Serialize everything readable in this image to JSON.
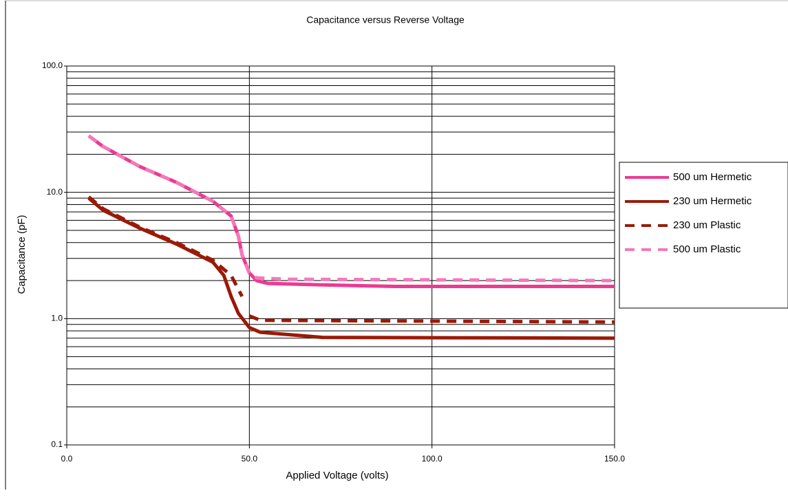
{
  "chart_data": {
    "type": "line",
    "title": "Capacitance versus Reverse Voltage",
    "xlabel": "Applied Voltage (volts)",
    "ylabel": "Capacitance (pF)",
    "xlim": [
      0,
      150
    ],
    "xticks": [
      {
        "value": 0,
        "label": "0.0"
      },
      {
        "value": 50,
        "label": "50.0"
      },
      {
        "value": 100,
        "label": "100.0"
      },
      {
        "value": 150,
        "label": "150.0"
      }
    ],
    "ylim": [
      0.1,
      100
    ],
    "yticks": [
      {
        "value": 0.1,
        "label": "0.1"
      },
      {
        "value": 1,
        "label": "1.0"
      },
      {
        "value": 10,
        "label": "10.0"
      },
      {
        "value": 100,
        "label": "100.0"
      }
    ],
    "yminor": [
      0.2,
      0.3,
      0.4,
      0.5,
      0.6,
      0.7,
      0.8,
      0.9,
      2,
      3,
      4,
      5,
      6,
      7,
      8,
      9,
      20,
      30,
      40,
      50,
      60,
      70,
      80,
      90
    ],
    "ylog": true,
    "grid": true,
    "legend": "right",
    "series": [
      {
        "name": "500 um Hermetic",
        "color": "#ec3a92",
        "style": "solid",
        "x": [
          6,
          10,
          20,
          30,
          40,
          45,
          47,
          48,
          50,
          52,
          55,
          70,
          90,
          150
        ],
        "values": [
          28,
          23,
          16,
          12,
          8.5,
          6.5,
          4.5,
          3.2,
          2.3,
          2.0,
          1.9,
          1.85,
          1.8,
          1.8
        ]
      },
      {
        "name": "230 um Hermetic",
        "color": "#9a1a08",
        "style": "solid",
        "x": [
          6,
          10,
          20,
          30,
          40,
          43,
          45,
          47,
          50,
          53,
          60,
          70,
          150
        ],
        "values": [
          9,
          7.2,
          5.2,
          3.9,
          2.8,
          2.2,
          1.5,
          1.1,
          0.85,
          0.78,
          0.75,
          0.71,
          0.7
        ]
      },
      {
        "name": "230 um Plastic",
        "color": "#9a1a08",
        "style": "dashed",
        "x": [
          6,
          10,
          20,
          30,
          40,
          45,
          48,
          49,
          50,
          53,
          150
        ],
        "values": [
          9.2,
          7.4,
          5.3,
          4.0,
          2.9,
          2.2,
          1.5,
          null,
          1.05,
          0.97,
          0.94
        ]
      },
      {
        "name": "500 um Plastic",
        "color": "#f27ab8",
        "style": "dashed",
        "x": [
          6,
          10,
          20,
          30,
          40,
          45,
          47,
          48,
          50,
          52,
          60,
          150
        ],
        "values": [
          28,
          23,
          16,
          12,
          8.5,
          6.5,
          4.5,
          3.2,
          2.3,
          2.1,
          2.05,
          2.0
        ]
      }
    ]
  }
}
